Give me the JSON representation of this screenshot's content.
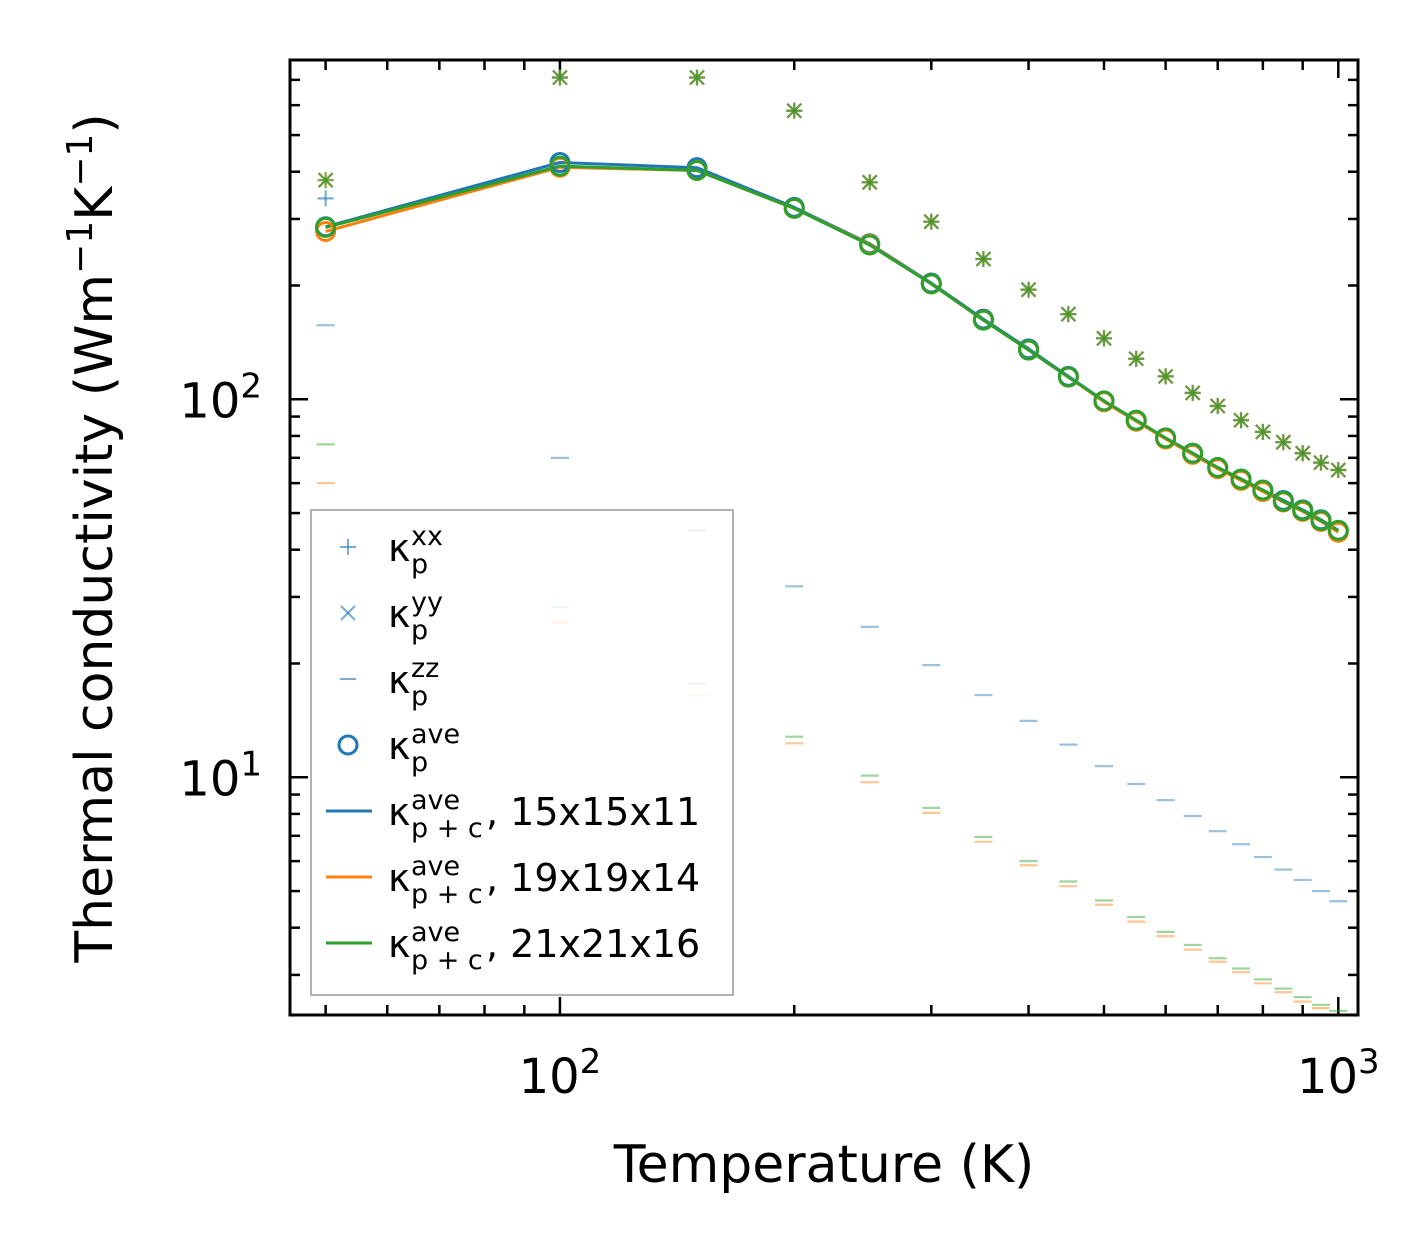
{
  "chart_data": {
    "type": "line",
    "xlabel": "Temperature (K)",
    "ylabel_parts": [
      "Thermal conductivity (Wm",
      "−1",
      "K",
      "−1",
      ")"
    ],
    "x_scale": "log",
    "y_scale": "log",
    "xlim": [
      45,
      1060
    ],
    "ylim": [
      2.35,
      790
    ],
    "x_ticks": [
      {
        "value": 100,
        "base": "10",
        "exp": "2"
      },
      {
        "value": 1000,
        "base": "10",
        "exp": "3"
      }
    ],
    "y_ticks": [
      {
        "value": 10,
        "base": "10",
        "exp": "1"
      },
      {
        "value": 100,
        "base": "10",
        "exp": "2"
      }
    ],
    "x": [
      50,
      100,
      150,
      200,
      250,
      300,
      350,
      400,
      450,
      500,
      550,
      600,
      650,
      700,
      750,
      800,
      850,
      900,
      950,
      1000
    ],
    "colors": {
      "blue": "#1f77b4",
      "orange": "#ff7f0e",
      "green": "#2ca02c"
    },
    "kappa_xx": [
      380,
      710,
      710,
      580,
      375,
      295,
      235,
      195,
      168,
      145,
      128,
      115,
      104,
      96,
      88,
      82,
      77,
      72,
      68,
      65
    ],
    "kappa_yy": [
      380,
      710,
      710,
      580,
      375,
      295,
      235,
      195,
      168,
      145,
      128,
      115,
      104,
      96,
      88,
      82,
      77,
      72,
      68,
      65
    ],
    "kappa_xx_blue_low": 340,
    "kappa_zz": {
      "blue": [
        157,
        70,
        45,
        32,
        25,
        19.8,
        16.5,
        14.1,
        12.2,
        10.7,
        9.6,
        8.7,
        7.9,
        7.2,
        6.65,
        6.15,
        5.7,
        5.35,
        5.0,
        4.7
      ],
      "orange": [
        60,
        25.7,
        16.5,
        12.3,
        9.7,
        8.05,
        6.75,
        5.85,
        5.15,
        4.6,
        4.15,
        3.8,
        3.5,
        3.25,
        3.05,
        2.85,
        2.7,
        2.55,
        2.45,
        2.35
      ],
      "green": [
        76,
        28.2,
        17.7,
        12.8,
        10.1,
        8.3,
        6.95,
        6.0,
        5.3,
        4.72,
        4.27,
        3.9,
        3.6,
        3.32,
        3.12,
        2.92,
        2.76,
        2.62,
        2.5,
        2.41
      ]
    },
    "series": [
      {
        "name": "κp+c ave, 15x15x11",
        "color": "#1f77b4",
        "values": [
          286,
          423,
          410,
          322,
          258,
          203,
          163,
          136,
          115,
          99,
          88,
          79,
          72,
          66,
          61.5,
          57.5,
          54,
          51,
          48,
          45
        ]
      },
      {
        "name": "κp+c ave, 19x19x14",
        "color": "#ff7f0e",
        "values": [
          278,
          411,
          403,
          320,
          257,
          202,
          162,
          135,
          114.5,
          98.5,
          87.5,
          78.5,
          71.5,
          65.5,
          61,
          57,
          53.5,
          50.5,
          47.5,
          44.5
        ]
      },
      {
        "name": "κp+c ave, 21x21x16",
        "color": "#2ca02c",
        "values": [
          285,
          414,
          403,
          320,
          256,
          202,
          162,
          135,
          114.5,
          99,
          88,
          79,
          72,
          66,
          61.5,
          57.5,
          53.7,
          50.8,
          47.8,
          45
        ]
      }
    ],
    "legend": [
      {
        "sym": "κ",
        "sub": "p",
        "sup": "xx",
        "suffix": "",
        "marker": "plus",
        "color": "#1f77b4"
      },
      {
        "sym": "κ",
        "sub": "p",
        "sup": "yy",
        "suffix": "",
        "marker": "x",
        "color": "#1f77b4"
      },
      {
        "sym": "κ",
        "sub": "p",
        "sup": "zz",
        "suffix": "",
        "marker": "dash",
        "color": "#1f77b4"
      },
      {
        "sym": "κ",
        "sub": "p",
        "sup": "ave",
        "suffix": "",
        "marker": "circle",
        "color": "#1f77b4"
      },
      {
        "sym": "κ",
        "sub": "p + c",
        "sup": "ave",
        "suffix": ", 15x15x11",
        "marker": "line",
        "color": "#1f77b4"
      },
      {
        "sym": "κ",
        "sub": "p + c",
        "sup": "ave",
        "suffix": ", 19x19x14",
        "marker": "line",
        "color": "#ff7f0e"
      },
      {
        "sym": "κ",
        "sub": "p + c",
        "sup": "ave",
        "suffix": ", 21x21x16",
        "marker": "line",
        "color": "#2ca02c"
      }
    ],
    "legend_position": "lower-left"
  }
}
